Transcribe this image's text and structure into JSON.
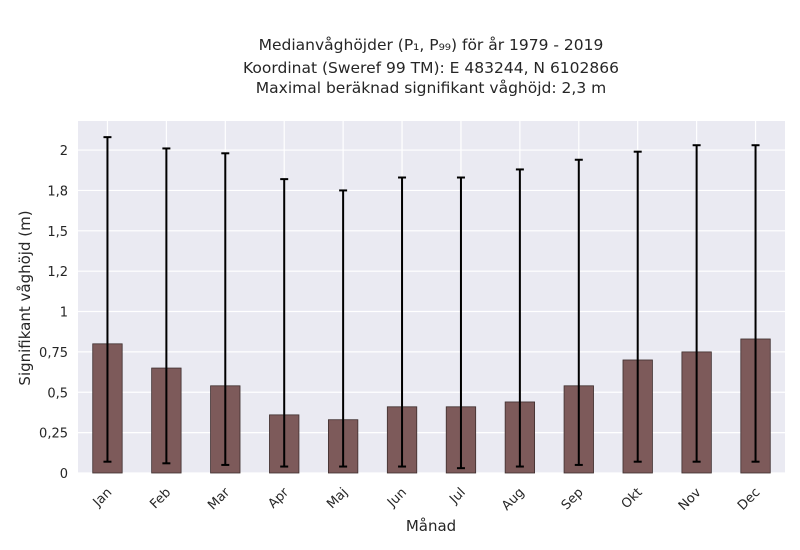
{
  "chart_data": {
    "type": "bar",
    "title_lines": [
      "Medianvåghöjder (P₁, P₉₉) för år 1979 - 2019",
      "Koordinat (Sweref 99 TM): E 483244, N 6102866",
      "Maximal beräknad signifikant våghöjd: 2,3 m"
    ],
    "xlabel": "Månad",
    "ylabel": "Signifikant våghöjd (m)",
    "categories": [
      "Jan",
      "Feb",
      "Mar",
      "Apr",
      "Maj",
      "Jun",
      "Jul",
      "Aug",
      "Sep",
      "Okt",
      "Nov",
      "Dec"
    ],
    "values": [
      0.8,
      0.65,
      0.54,
      0.36,
      0.33,
      0.41,
      0.41,
      0.44,
      0.54,
      0.7,
      0.75,
      0.83
    ],
    "error_low": [
      0.07,
      0.06,
      0.05,
      0.04,
      0.04,
      0.04,
      0.03,
      0.04,
      0.05,
      0.07,
      0.07,
      0.07
    ],
    "error_high": [
      2.08,
      2.01,
      1.98,
      1.82,
      1.75,
      1.83,
      1.83,
      1.88,
      1.94,
      1.99,
      2.03,
      2.03
    ],
    "yticks": [
      {
        "value": 0,
        "label": "0"
      },
      {
        "value": 0.25,
        "label": "0,25"
      },
      {
        "value": 0.5,
        "label": "0,5"
      },
      {
        "value": 0.75,
        "label": "0,75"
      },
      {
        "value": 1.0,
        "label": "1"
      },
      {
        "value": 1.25,
        "label": "1,2"
      },
      {
        "value": 1.5,
        "label": "1,5"
      },
      {
        "value": 1.75,
        "label": "1,8"
      },
      {
        "value": 2.0,
        "label": "2"
      }
    ],
    "ylim": [
      0,
      2.18
    ],
    "grid": true,
    "colors": {
      "bar": "#7d5a5a",
      "bar_edge": "#3d2d2d",
      "error": "#000000",
      "plot_background": "#eaeaf2",
      "grid": "#ffffff"
    }
  }
}
